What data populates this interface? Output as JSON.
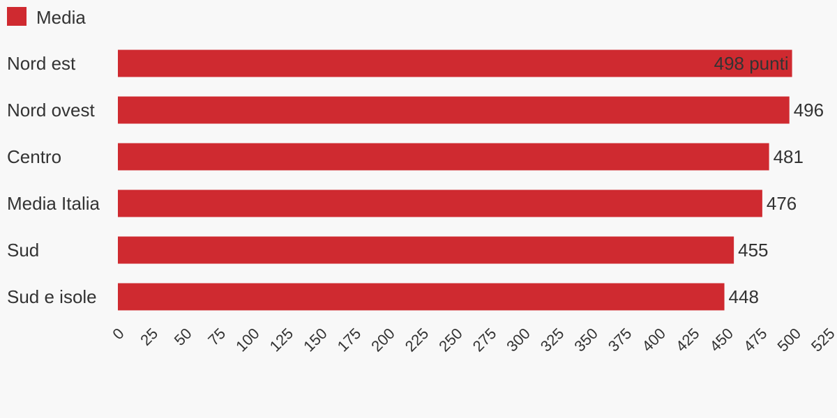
{
  "chart_data": {
    "type": "hbar",
    "categories": [
      "Nord est",
      "Nord ovest",
      "Centro",
      "Media Italia",
      "Sud",
      "Sud e isole"
    ],
    "series": [
      {
        "name": "Media",
        "color": "#cf2a30",
        "values": [
          498,
          496,
          481,
          476,
          455,
          448
        ],
        "value_labels": [
          "498 punti",
          "496",
          "481",
          "476",
          "455",
          "448"
        ]
      }
    ],
    "xlim": [
      0,
      525
    ],
    "xticks": [
      0,
      25,
      50,
      75,
      100,
      125,
      150,
      175,
      200,
      225,
      250,
      275,
      300,
      325,
      350,
      375,
      400,
      425,
      450,
      475,
      500,
      525
    ],
    "legend": "top-left",
    "grid": false
  }
}
